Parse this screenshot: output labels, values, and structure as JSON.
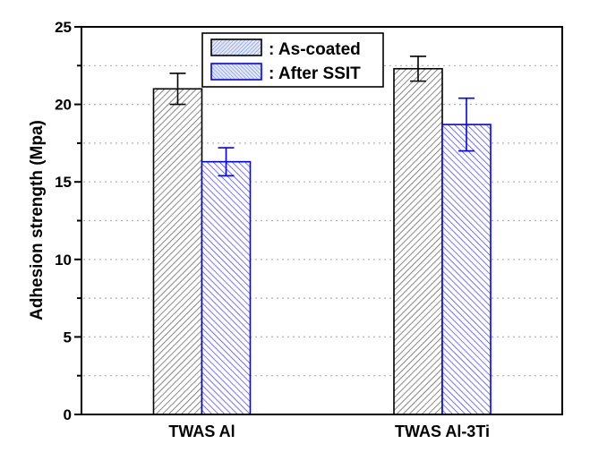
{
  "chart_data": {
    "type": "bar",
    "title": "",
    "xlabel": "",
    "ylabel": "Adhesion strength (Mpa)",
    "ylim": [
      0,
      25
    ],
    "yticks": [
      0,
      5,
      10,
      15,
      20,
      25
    ],
    "yticks_labels": [
      "0",
      "5",
      "10",
      "15",
      "20",
      "25"
    ],
    "minor_ticks": [
      2.5,
      7.5,
      12.5,
      17.5,
      22.5
    ],
    "grid": true,
    "grid_style": "dotted",
    "categories": [
      "TWAS Al",
      "TWAS Al-3Ti"
    ],
    "series": [
      {
        "name": "As-coated",
        "legend_label": ": As-coated",
        "values": [
          21.0,
          22.3
        ],
        "error_low": [
          20.0,
          21.5
        ],
        "error_high": [
          22.0,
          23.1
        ],
        "color": "#000000",
        "hatch": "forward-diagonal"
      },
      {
        "name": "After SSIT",
        "legend_label": ": After SSIT",
        "values": [
          16.3,
          18.7
        ],
        "error_low": [
          15.4,
          17.0
        ],
        "error_high": [
          17.2,
          20.4
        ],
        "color": "#0000ff",
        "hatch": "backward-diagonal"
      }
    ],
    "legend": {
      "position": "top-center",
      "swatch_fill": "#c8d4f0",
      "swatch_hatch_color": "#4060c0"
    }
  }
}
